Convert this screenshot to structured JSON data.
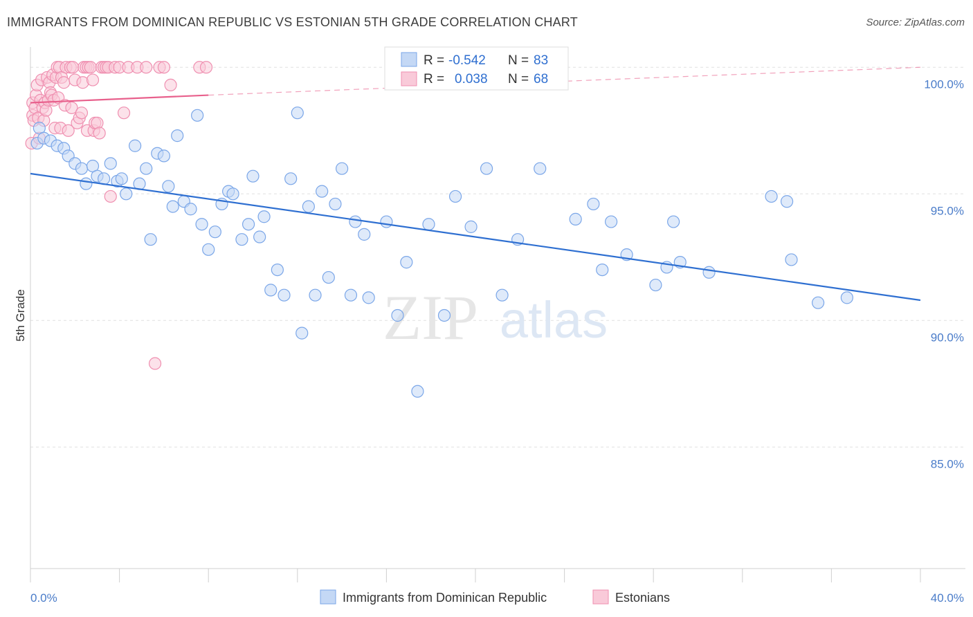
{
  "title": "IMMIGRANTS FROM DOMINICAN REPUBLIC VS ESTONIAN 5TH GRADE CORRELATION CHART",
  "source": "Source: ZipAtlas.com",
  "watermark": {
    "zip": "ZIP",
    "atlas": "atlas"
  },
  "legend": {
    "r_label": "R =",
    "n_label": "N =",
    "rows": [
      {
        "r": "-0.542",
        "n": "83"
      },
      {
        "r": "0.038",
        "n": "68"
      }
    ]
  },
  "chart_data": {
    "type": "scatter",
    "xlabel": "",
    "ylabel": "5th Grade",
    "xlim": [
      0,
      40
    ],
    "ylim": [
      80.2,
      100.8
    ],
    "x_tick_labels": [
      {
        "value": 0,
        "label": "0.0%"
      },
      {
        "value": 40,
        "label": "40.0%"
      }
    ],
    "y_tick_labels": [
      {
        "value": 100,
        "label": "100.0%"
      },
      {
        "value": 95,
        "label": "95.0%"
      },
      {
        "value": 90,
        "label": "90.0%"
      },
      {
        "value": 85,
        "label": "85.0%"
      }
    ],
    "x_minor_ticks": [
      0,
      4,
      8,
      12,
      16,
      20,
      24,
      28,
      32,
      36,
      40
    ],
    "grid": "horizontal dashed",
    "legend_position": "top-center",
    "series": [
      {
        "name": "Immigrants from Dominican Republic",
        "color": "#7aa6e8",
        "fill": "#c4d8f5",
        "line_color": "#2e6fd1",
        "trend": {
          "x": [
            0,
            40
          ],
          "y": [
            95.8,
            90.8
          ]
        },
        "points": [
          [
            0.3,
            97.0
          ],
          [
            0.4,
            97.6
          ],
          [
            0.6,
            97.2
          ],
          [
            0.9,
            97.1
          ],
          [
            1.2,
            96.9
          ],
          [
            1.5,
            96.8
          ],
          [
            1.7,
            96.5
          ],
          [
            2.0,
            96.2
          ],
          [
            2.3,
            96.0
          ],
          [
            2.5,
            95.4
          ],
          [
            2.8,
            96.1
          ],
          [
            3.0,
            95.7
          ],
          [
            3.3,
            95.6
          ],
          [
            3.6,
            96.2
          ],
          [
            3.9,
            95.5
          ],
          [
            4.1,
            95.6
          ],
          [
            4.3,
            95.0
          ],
          [
            4.7,
            96.9
          ],
          [
            4.9,
            95.4
          ],
          [
            5.2,
            96.0
          ],
          [
            5.4,
            93.2
          ],
          [
            5.7,
            96.6
          ],
          [
            6.0,
            96.5
          ],
          [
            6.2,
            95.3
          ],
          [
            6.4,
            94.5
          ],
          [
            6.6,
            97.3
          ],
          [
            6.9,
            94.7
          ],
          [
            7.2,
            94.4
          ],
          [
            7.5,
            98.1
          ],
          [
            7.7,
            93.8
          ],
          [
            8.0,
            92.8
          ],
          [
            8.3,
            93.5
          ],
          [
            8.6,
            94.6
          ],
          [
            8.9,
            95.1
          ],
          [
            9.1,
            95.0
          ],
          [
            9.5,
            93.2
          ],
          [
            9.8,
            93.8
          ],
          [
            10.0,
            95.7
          ],
          [
            10.3,
            93.3
          ],
          [
            10.5,
            94.1
          ],
          [
            10.8,
            91.2
          ],
          [
            11.1,
            92.0
          ],
          [
            11.4,
            91.0
          ],
          [
            11.7,
            95.6
          ],
          [
            12.0,
            98.2
          ],
          [
            12.2,
            89.5
          ],
          [
            12.5,
            94.5
          ],
          [
            12.8,
            91.0
          ],
          [
            13.1,
            95.1
          ],
          [
            13.4,
            91.7
          ],
          [
            13.7,
            94.6
          ],
          [
            14.0,
            96.0
          ],
          [
            14.4,
            91.0
          ],
          [
            14.6,
            93.9
          ],
          [
            15.0,
            93.4
          ],
          [
            15.2,
            90.9
          ],
          [
            16.0,
            93.9
          ],
          [
            16.5,
            90.2
          ],
          [
            16.9,
            92.3
          ],
          [
            17.4,
            87.2
          ],
          [
            17.9,
            93.8
          ],
          [
            18.6,
            90.2
          ],
          [
            19.1,
            94.9
          ],
          [
            19.8,
            93.7
          ],
          [
            20.5,
            96.0
          ],
          [
            21.2,
            91.0
          ],
          [
            21.9,
            93.2
          ],
          [
            22.9,
            96.0
          ],
          [
            24.5,
            94.0
          ],
          [
            25.3,
            94.6
          ],
          [
            25.7,
            92.0
          ],
          [
            26.1,
            93.9
          ],
          [
            26.8,
            92.6
          ],
          [
            28.1,
            91.4
          ],
          [
            28.6,
            92.1
          ],
          [
            28.9,
            93.9
          ],
          [
            29.2,
            92.3
          ],
          [
            30.5,
            91.9
          ],
          [
            33.3,
            94.9
          ],
          [
            34.0,
            94.7
          ],
          [
            34.2,
            92.4
          ],
          [
            35.4,
            90.7
          ],
          [
            36.7,
            90.9
          ]
        ]
      },
      {
        "name": "Estonians",
        "color": "#ef8fb0",
        "fill": "#f9cad9",
        "line_color": "#e8608c",
        "trend": {
          "x": [
            0,
            8
          ],
          "y": [
            98.6,
            98.9
          ]
        },
        "trend_extension": {
          "x": [
            8,
            40
          ],
          "y": [
            98.9,
            100.0
          ]
        },
        "points": [
          [
            0.05,
            97.0
          ],
          [
            0.1,
            98.6
          ],
          [
            0.1,
            98.1
          ],
          [
            0.15,
            97.9
          ],
          [
            0.2,
            98.4
          ],
          [
            0.25,
            98.9
          ],
          [
            0.3,
            99.3
          ],
          [
            0.35,
            98.0
          ],
          [
            0.4,
            97.2
          ],
          [
            0.45,
            98.7
          ],
          [
            0.5,
            99.5
          ],
          [
            0.55,
            98.4
          ],
          [
            0.6,
            97.9
          ],
          [
            0.65,
            98.6
          ],
          [
            0.7,
            98.3
          ],
          [
            0.75,
            99.6
          ],
          [
            0.8,
            98.7
          ],
          [
            0.85,
            99.4
          ],
          [
            0.9,
            99.0
          ],
          [
            0.95,
            98.9
          ],
          [
            1.0,
            99.7
          ],
          [
            1.05,
            98.7
          ],
          [
            1.1,
            97.6
          ],
          [
            1.15,
            99.6
          ],
          [
            1.2,
            100.0
          ],
          [
            1.25,
            98.8
          ],
          [
            1.3,
            100.0
          ],
          [
            1.35,
            97.6
          ],
          [
            1.4,
            99.6
          ],
          [
            1.5,
            99.4
          ],
          [
            1.55,
            98.5
          ],
          [
            1.6,
            100.0
          ],
          [
            1.7,
            97.5
          ],
          [
            1.8,
            100.0
          ],
          [
            1.85,
            98.4
          ],
          [
            1.9,
            100.0
          ],
          [
            2.0,
            99.5
          ],
          [
            2.1,
            97.8
          ],
          [
            2.2,
            98.0
          ],
          [
            2.3,
            98.2
          ],
          [
            2.35,
            99.4
          ],
          [
            2.4,
            100.0
          ],
          [
            2.5,
            100.0
          ],
          [
            2.55,
            97.5
          ],
          [
            2.6,
            100.0
          ],
          [
            2.7,
            100.0
          ],
          [
            2.8,
            99.5
          ],
          [
            2.85,
            97.5
          ],
          [
            2.9,
            97.8
          ],
          [
            3.0,
            97.8
          ],
          [
            3.1,
            97.4
          ],
          [
            3.2,
            100.0
          ],
          [
            3.3,
            100.0
          ],
          [
            3.4,
            100.0
          ],
          [
            3.5,
            100.0
          ],
          [
            3.6,
            94.9
          ],
          [
            3.8,
            100.0
          ],
          [
            4.0,
            100.0
          ],
          [
            4.2,
            98.2
          ],
          [
            4.4,
            100.0
          ],
          [
            4.8,
            100.0
          ],
          [
            5.2,
            100.0
          ],
          [
            5.6,
            88.3
          ],
          [
            5.8,
            100.0
          ],
          [
            6.0,
            100.0
          ],
          [
            6.3,
            99.3
          ],
          [
            7.6,
            100.0
          ],
          [
            7.9,
            100.0
          ]
        ]
      }
    ]
  }
}
